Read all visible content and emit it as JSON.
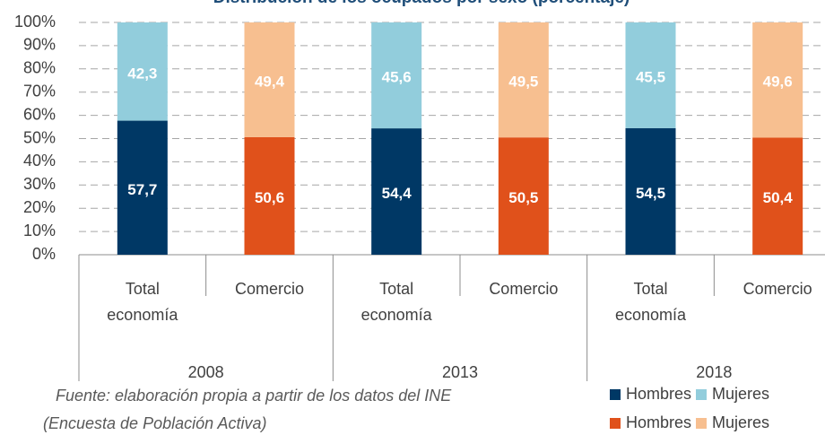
{
  "chart_data": {
    "type": "stacked_bar",
    "title": "Distribución de los ocupados por sexo (porcentaje)",
    "categories": [
      "Total economía",
      "Comercio",
      "Total economía",
      "Comercio",
      "Total economía",
      "Comercio"
    ],
    "groups": [
      "2008",
      "2013",
      "2018"
    ],
    "series": [
      {
        "name": "Hombres",
        "color": "#003865",
        "values": [
          57.7,
          null,
          54.4,
          null,
          54.5,
          null
        ],
        "value_labels": [
          "57,7",
          null,
          "54,4",
          null,
          "54,5",
          null
        ]
      },
      {
        "name": "Mujeres",
        "color": "#92cddc",
        "values": [
          42.3,
          null,
          45.6,
          null,
          45.5,
          null
        ],
        "value_labels": [
          "42,3",
          null,
          "45,6",
          null,
          "45,5",
          null
        ]
      },
      {
        "name": "Hombres",
        "color": "#e0511b",
        "values": [
          null,
          50.6,
          null,
          50.5,
          null,
          50.4
        ],
        "value_labels": [
          null,
          "50,6",
          null,
          "50,5",
          null,
          "50,4"
        ]
      },
      {
        "name": "Mujeres",
        "color": "#f7bf90",
        "values": [
          null,
          49.4,
          null,
          49.5,
          null,
          49.6
        ],
        "value_labels": [
          null,
          "49,4",
          null,
          "49,5",
          null,
          "49,6"
        ]
      }
    ],
    "ylim": [
      0,
      100
    ],
    "yticks": [
      {
        "value": 0,
        "label": "0%"
      },
      {
        "value": 10,
        "label": "10%"
      },
      {
        "value": 20,
        "label": "20%"
      },
      {
        "value": 30,
        "label": "30%"
      },
      {
        "value": 40,
        "label": "40%"
      },
      {
        "value": 50,
        "label": "50%"
      },
      {
        "value": 60,
        "label": "60%"
      },
      {
        "value": 70,
        "label": "70%"
      },
      {
        "value": 80,
        "label": "80%"
      },
      {
        "value": 90,
        "label": "90%"
      },
      {
        "value": 100,
        "label": "100%"
      }
    ],
    "grid": true,
    "source": [
      "Fuente: elaboración propia a partir de los datos del INE",
      "(Encuesta de Población Activa)"
    ]
  }
}
